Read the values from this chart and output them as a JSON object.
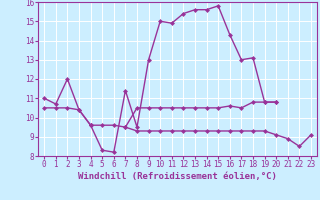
{
  "xlabel": "Windchill (Refroidissement éolien,°C)",
  "x": [
    0,
    1,
    2,
    3,
    4,
    5,
    6,
    7,
    8,
    9,
    10,
    11,
    12,
    13,
    14,
    15,
    16,
    17,
    18,
    19,
    20,
    21,
    22,
    23
  ],
  "line_main": [
    11.0,
    10.7,
    12.0,
    10.4,
    9.6,
    8.3,
    8.2,
    11.4,
    9.5,
    13.0,
    15.0,
    14.9,
    15.4,
    15.6,
    15.6,
    15.8,
    14.3,
    13.0,
    13.1,
    10.8,
    10.8,
    null,
    null,
    null
  ],
  "line_mid": [
    10.5,
    10.5,
    10.5,
    10.4,
    9.6,
    null,
    null,
    9.5,
    10.5,
    10.5,
    10.5,
    10.5,
    10.5,
    10.5,
    10.5,
    10.5,
    10.6,
    10.5,
    10.8,
    10.8,
    10.8,
    null,
    null,
    null
  ],
  "line_low": [
    null,
    null,
    null,
    null,
    9.6,
    9.6,
    9.6,
    9.5,
    9.3,
    9.3,
    9.3,
    9.3,
    9.3,
    9.3,
    9.3,
    9.3,
    9.3,
    9.3,
    9.3,
    9.3,
    9.1,
    8.9,
    8.5,
    9.1
  ],
  "color": "#993399",
  "bg_color": "#cceeff",
  "grid_color": "#ffffff",
  "ylim": [
    8,
    16
  ],
  "xlim_min": -0.5,
  "xlim_max": 23.5,
  "yticks": [
    8,
    9,
    10,
    11,
    12,
    13,
    14,
    15,
    16
  ],
  "xticks": [
    0,
    1,
    2,
    3,
    4,
    5,
    6,
    7,
    8,
    9,
    10,
    11,
    12,
    13,
    14,
    15,
    16,
    17,
    18,
    19,
    20,
    21,
    22,
    23
  ],
  "markersize": 2.5,
  "linewidth": 1.0,
  "label_fontsize": 6.5,
  "tick_fontsize": 5.5
}
